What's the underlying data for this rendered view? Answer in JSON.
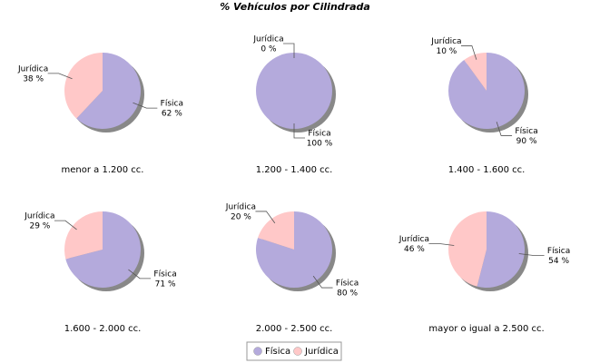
{
  "title": "% Vehículos por Cilindrada",
  "chart_data": [
    {
      "type": "pie",
      "title": "menor a 1.200 cc.",
      "categories": [
        "Física",
        "Jurídica"
      ],
      "values": [
        62,
        38
      ],
      "value_labels": [
        "62 %",
        "38 %"
      ],
      "colors": [
        "#b4aadc",
        "#ffc8c8"
      ]
    },
    {
      "type": "pie",
      "title": "1.200 - 1.400 cc.",
      "categories": [
        "Física",
        "Jurídica"
      ],
      "values": [
        100,
        0
      ],
      "value_labels": [
        "100 %",
        "0 %"
      ],
      "colors": [
        "#b4aadc",
        "#ffc8c8"
      ]
    },
    {
      "type": "pie",
      "title": "1.400 - 1.600 cc.",
      "categories": [
        "Física",
        "Jurídica"
      ],
      "values": [
        90,
        10
      ],
      "value_labels": [
        "90 %",
        "10 %"
      ],
      "colors": [
        "#b4aadc",
        "#ffc8c8"
      ]
    },
    {
      "type": "pie",
      "title": "1.600 - 2.000 cc.",
      "categories": [
        "Física",
        "Jurídica"
      ],
      "values": [
        71,
        29
      ],
      "value_labels": [
        "71 %",
        "29 %"
      ],
      "colors": [
        "#b4aadc",
        "#ffc8c8"
      ]
    },
    {
      "type": "pie",
      "title": "2.000 - 2.500 cc.",
      "categories": [
        "Física",
        "Jurídica"
      ],
      "values": [
        80,
        20
      ],
      "value_labels": [
        "80 %",
        "20 %"
      ],
      "colors": [
        "#b4aadc",
        "#ffc8c8"
      ]
    },
    {
      "type": "pie",
      "title": "mayor o igual a 2.500 cc.",
      "categories": [
        "Física",
        "Jurídica"
      ],
      "values": [
        54,
        46
      ],
      "value_labels": [
        "54 %",
        "46 %"
      ],
      "colors": [
        "#b4aadc",
        "#ffc8c8"
      ]
    }
  ]
}
